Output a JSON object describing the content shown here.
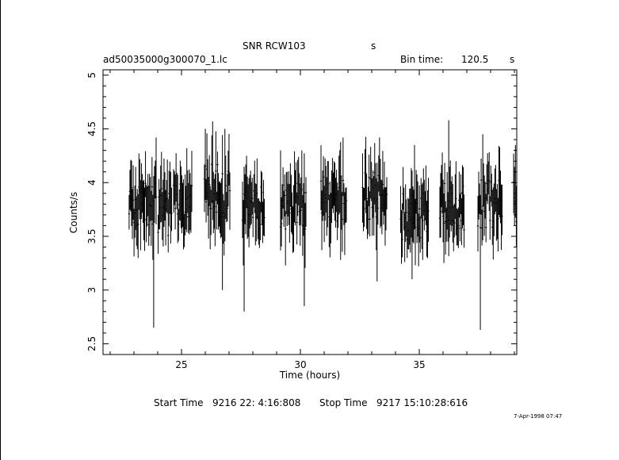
{
  "header": {
    "title": "SNR RCW103",
    "title_unit": "s",
    "file_name": "ad50035000g300070_1.lc",
    "bin_label": "Bin time:",
    "bin_value": "120.5",
    "bin_unit": "s"
  },
  "footer": {
    "start_label": "Start Time",
    "start_value": "9216 22: 4:16:808",
    "stop_label": "Stop Time",
    "stop_value": "9217 15:10:28:616",
    "date_stamp": "7-Apr-1998 07:47"
  },
  "chart_data": {
    "type": "line",
    "xlabel": "Time (hours)",
    "ylabel": "Counts/s",
    "xlim": [
      21.7,
      39.1
    ],
    "ylim": [
      2.4,
      5.05
    ],
    "xticks": [
      25,
      30,
      35
    ],
    "yticks": [
      2.5,
      3,
      3.5,
      4,
      4.5,
      5
    ],
    "grid": false,
    "series": [
      {
        "segments": [
          {
            "t0": 22.78,
            "t1": 23.95,
            "mean": 3.8,
            "min": 2.65,
            "max": 4.42,
            "seed": 11
          },
          {
            "t0": 24.0,
            "t1": 24.6,
            "mean": 3.72,
            "min": 3.35,
            "max": 4.1,
            "seed": 12
          },
          {
            "t0": 24.65,
            "t1": 25.45,
            "mean": 3.8,
            "min": 3.4,
            "max": 4.32,
            "seed": 13
          },
          {
            "t0": 25.95,
            "t1": 26.6,
            "mean": 3.95,
            "min": 3.38,
            "max": 4.57,
            "seed": 14
          },
          {
            "t0": 26.6,
            "t1": 27.05,
            "mean": 3.9,
            "min": 3.0,
            "max": 4.5,
            "seed": 15
          },
          {
            "t0": 27.55,
            "t1": 28.5,
            "mean": 3.75,
            "min": 2.8,
            "max": 4.25,
            "seed": 16
          },
          {
            "t0": 29.15,
            "t1": 30.25,
            "mean": 3.78,
            "min": 2.85,
            "max": 4.3,
            "seed": 17
          },
          {
            "t0": 30.85,
            "t1": 31.95,
            "mean": 3.85,
            "min": 3.28,
            "max": 4.42,
            "seed": 18
          },
          {
            "t0": 32.6,
            "t1": 33.65,
            "mean": 3.88,
            "min": 3.08,
            "max": 4.42,
            "seed": 19
          },
          {
            "t0": 34.2,
            "t1": 35.4,
            "mean": 3.68,
            "min": 3.1,
            "max": 4.35,
            "seed": 20
          },
          {
            "t0": 35.85,
            "t1": 36.9,
            "mean": 3.78,
            "min": 3.45,
            "max": 4.58,
            "seed": 21
          },
          {
            "t0": 37.45,
            "t1": 38.5,
            "mean": 3.8,
            "min": 2.63,
            "max": 4.45,
            "seed": 22
          },
          {
            "t0": 38.95,
            "t1": 39.1,
            "mean": 3.85,
            "min": 3.4,
            "max": 4.35,
            "seed": 23
          }
        ]
      }
    ]
  }
}
